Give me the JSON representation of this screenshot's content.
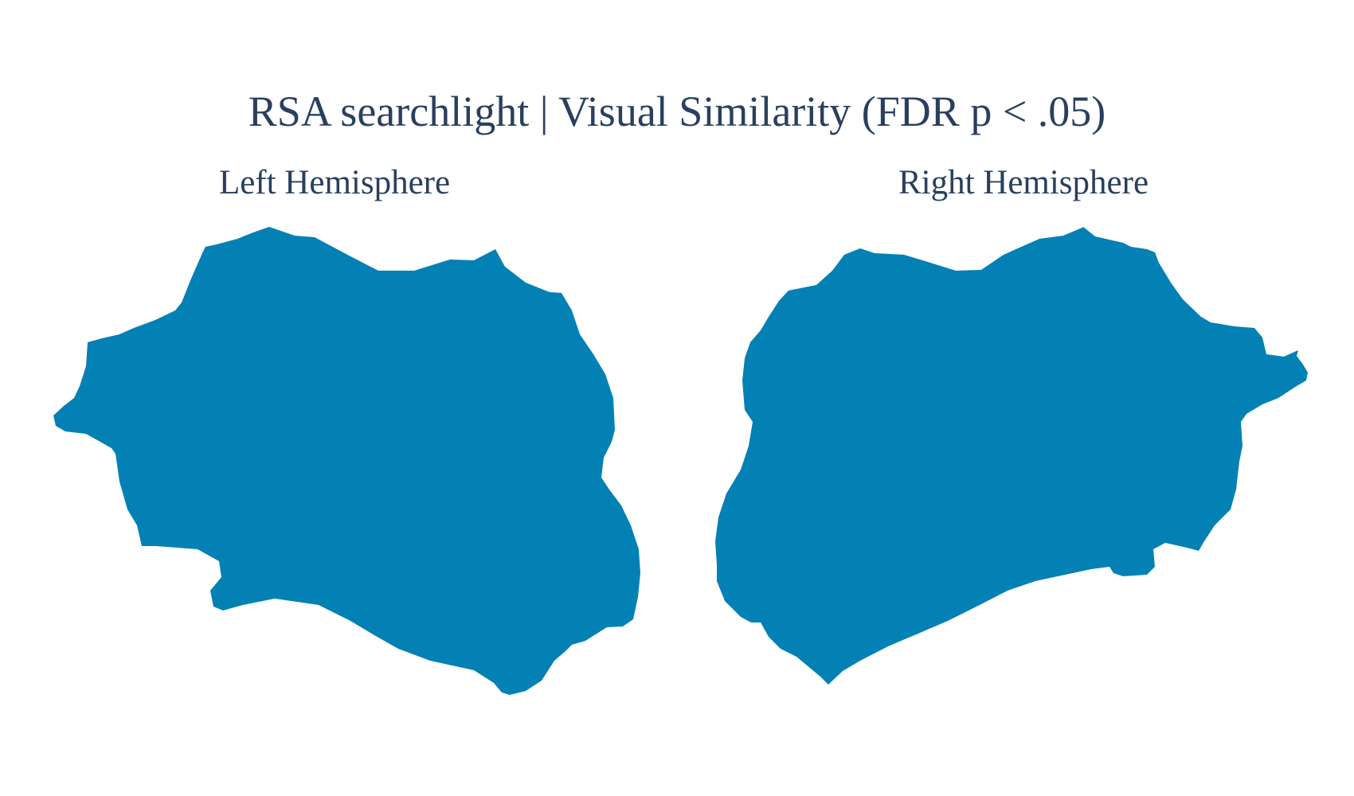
{
  "figure": {
    "title": "RSA searchlight | Visual Similarity (FDR p < .05)",
    "panels": [
      {
        "title": "Left Hemisphere"
      },
      {
        "title": "Right Hemisphere"
      }
    ]
  },
  "colors": {
    "text": "#2a3f5f",
    "surface_fill": "#0481b4",
    "background": "#ffffff"
  }
}
